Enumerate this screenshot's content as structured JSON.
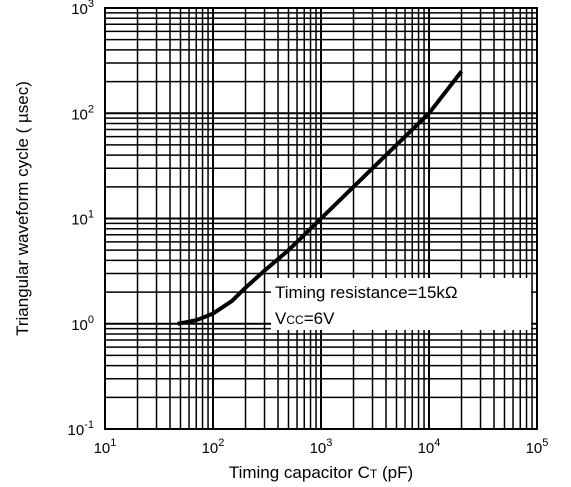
{
  "chart_data": {
    "type": "line",
    "x_scale": "log",
    "y_scale": "log",
    "xlim": [
      10,
      100000
    ],
    "ylim": [
      0.1,
      1000
    ],
    "grid": true,
    "xlabel": {
      "main": "Timing capacitor C",
      "sub": "T",
      "unit": " (pF)"
    },
    "ylabel": "Triangular waveform cycle ( µsec)",
    "x_ticks": [
      {
        "base": "10",
        "exp": "1"
      },
      {
        "base": "10",
        "exp": "2"
      },
      {
        "base": "10",
        "exp": "3"
      },
      {
        "base": "10",
        "exp": "4"
      },
      {
        "base": "10",
        "exp": "5"
      }
    ],
    "y_ticks": [
      {
        "base": "10",
        "exp": "-1"
      },
      {
        "base": "10",
        "exp": "0"
      },
      {
        "base": "10",
        "exp": "1"
      },
      {
        "base": "10",
        "exp": "2"
      },
      {
        "base": "10",
        "exp": "3"
      }
    ],
    "annotation": {
      "line1": "Timing resistance=15kΩ",
      "line2_prefix": "V",
      "line2_sub": "CC",
      "line2_suffix": "=6V"
    },
    "series": [
      {
        "points": [
          [
            47,
            1.0
          ],
          [
            70,
            1.08
          ],
          [
            100,
            1.25
          ],
          [
            150,
            1.65
          ],
          [
            200,
            2.2
          ],
          [
            300,
            3.2
          ],
          [
            500,
            5.0
          ],
          [
            1000,
            10
          ],
          [
            2000,
            20
          ],
          [
            5000,
            50
          ],
          [
            10000,
            100
          ],
          [
            20000,
            250
          ]
        ]
      }
    ]
  }
}
